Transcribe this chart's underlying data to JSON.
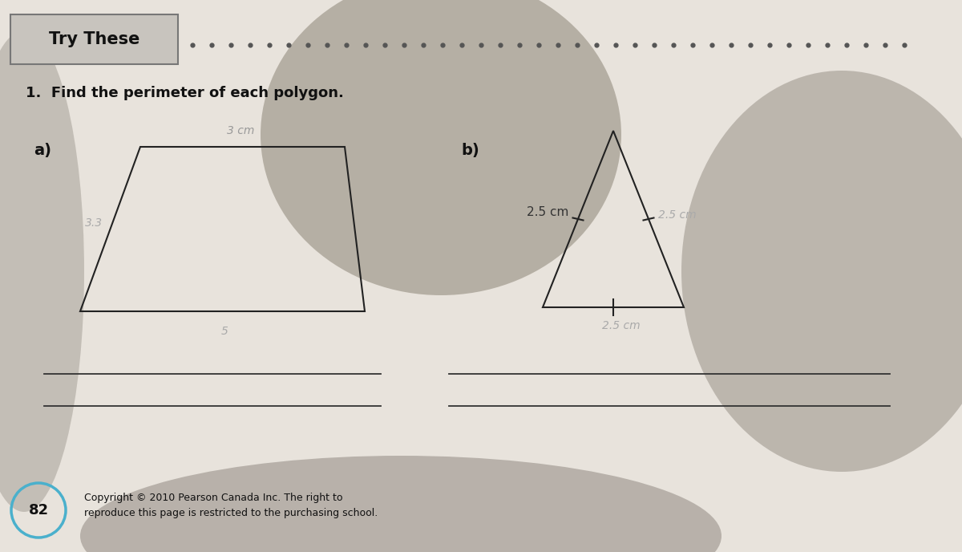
{
  "bg_color": "#c8c0b8",
  "page_bg": "#ede8e2",
  "title": "Try These",
  "question": "1.  Find the perimeter of each polygon.",
  "part_a_label": "a)",
  "part_b_label": "b)",
  "trap_top_label": "3 cm",
  "trap_left_label": "3.3",
  "trap_bottom_label": "5",
  "tri_left_label": "2.5 cm",
  "tri_right_label": "2.5 cm",
  "tri_bottom_label": "2.5 cm",
  "copyright": "Copyright © 2010 Pearson Canada Inc. The right to\nreproduce this page is restricted to the purchasing school.",
  "page_num": "82",
  "dot_color": "#555555",
  "line_color": "#222222",
  "title_bg": "#c8c4be",
  "page_num_circle_color": "#4ab0cc",
  "shadow_color": "#888070",
  "answer_line_color": "#333333"
}
